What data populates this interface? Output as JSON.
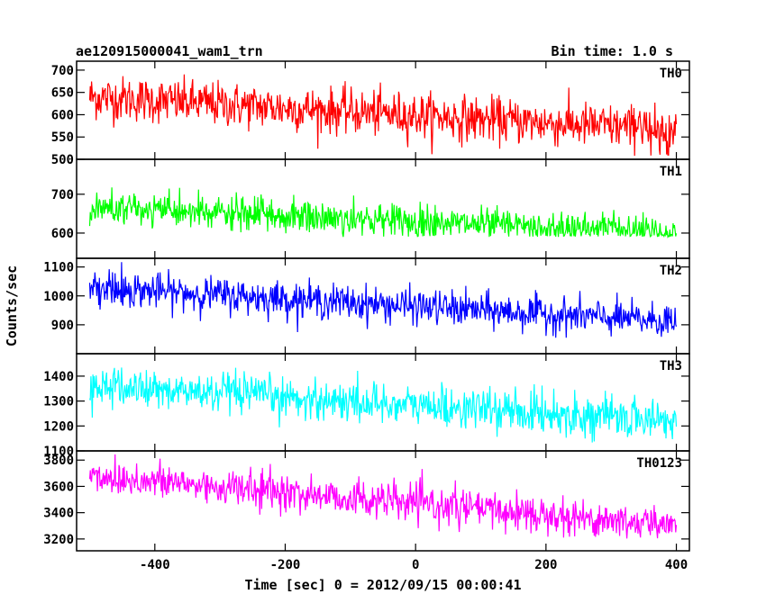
{
  "header": {
    "left": "ae120915000041_wam1_trn",
    "right": "Bin time: 1.0 s"
  },
  "chart_data": {
    "type": "line",
    "xlabel": "Time [sec] 0 = 2012/09/15 00:00:41",
    "ylabel": "Counts/sec",
    "xlim": [
      -520,
      420
    ],
    "xticks": [
      -400,
      -200,
      0,
      200,
      400
    ],
    "x_range": [
      -500,
      400
    ],
    "bin_time": 1.0,
    "panels": [
      {
        "name": "TH0",
        "color": "#ff0000",
        "ylim": [
          500,
          720
        ],
        "yticks": [
          500,
          550,
          600,
          650,
          700
        ],
        "start_level": 640,
        "end_level": 565,
        "noise": 25,
        "min": 505,
        "max": 715
      },
      {
        "name": "TH1",
        "color": "#00ff00",
        "ylim": [
          535,
          790
        ],
        "yticks": [
          600,
          700
        ],
        "start_level": 665,
        "end_level": 600,
        "noise": 22,
        "min": 590,
        "max": 770
      },
      {
        "name": "TH2",
        "color": "#0000ff",
        "ylim": [
          800,
          1130
        ],
        "yticks": [
          900,
          1000,
          1100
        ],
        "start_level": 1030,
        "end_level": 910,
        "noise": 30,
        "min": 850,
        "max": 1120
      },
      {
        "name": "TH3",
        "color": "#00ffff",
        "ylim": [
          1100,
          1490
        ],
        "yticks": [
          1100,
          1200,
          1300,
          1400
        ],
        "start_level": 1360,
        "end_level": 1220,
        "noise": 40,
        "min": 1110,
        "max": 1480
      },
      {
        "name": "TH0123",
        "color": "#ff00ff",
        "ylim": [
          3110,
          3870
        ],
        "yticks": [
          3200,
          3400,
          3600,
          3800
        ],
        "start_level": 3680,
        "end_level": 3300,
        "noise": 70,
        "min": 3200,
        "max": 3850
      }
    ]
  }
}
